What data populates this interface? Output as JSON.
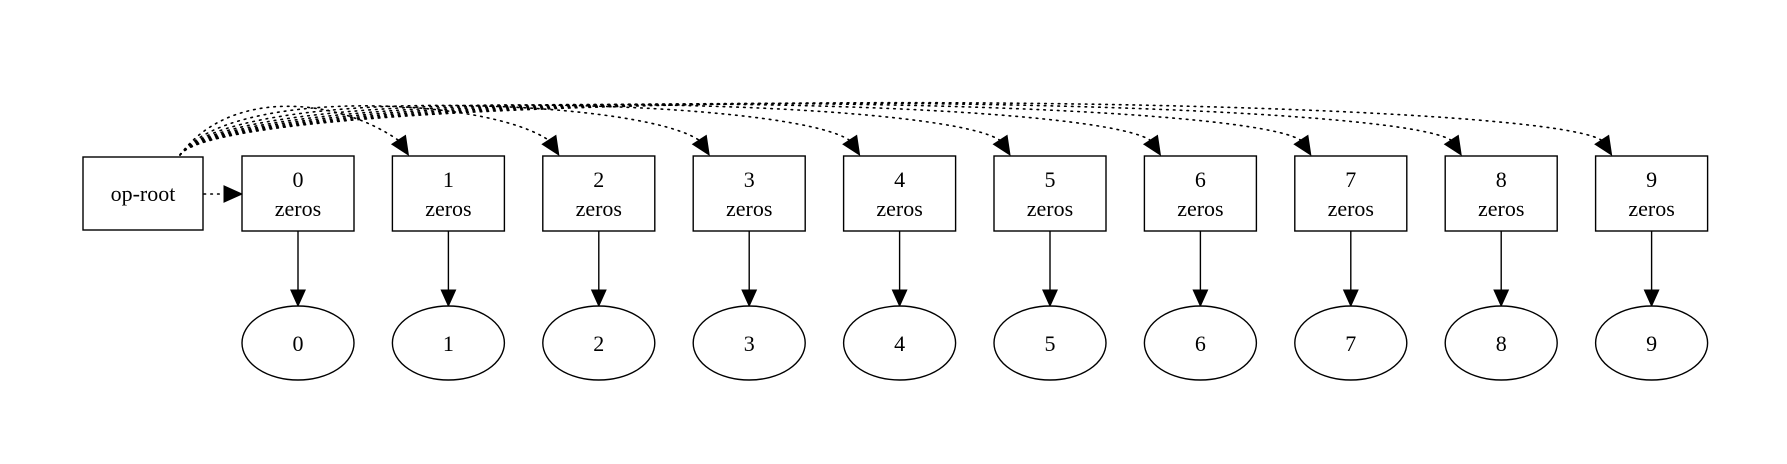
{
  "root": {
    "label": "op-root"
  },
  "ops": [
    {
      "index": "0",
      "op": "zeros",
      "output": "0"
    },
    {
      "index": "1",
      "op": "zeros",
      "output": "1"
    },
    {
      "index": "2",
      "op": "zeros",
      "output": "2"
    },
    {
      "index": "3",
      "op": "zeros",
      "output": "3"
    },
    {
      "index": "4",
      "op": "zeros",
      "output": "4"
    },
    {
      "index": "5",
      "op": "zeros",
      "output": "5"
    },
    {
      "index": "6",
      "op": "zeros",
      "output": "6"
    },
    {
      "index": "7",
      "op": "zeros",
      "output": "7"
    },
    {
      "index": "8",
      "op": "zeros",
      "output": "8"
    },
    {
      "index": "9",
      "op": "zeros",
      "output": "9"
    }
  ],
  "edges": {
    "root_to_ops": "dotted",
    "ops_to_outputs": "solid"
  },
  "colors": {
    "stroke": "#000000",
    "background": "#ffffff"
  }
}
